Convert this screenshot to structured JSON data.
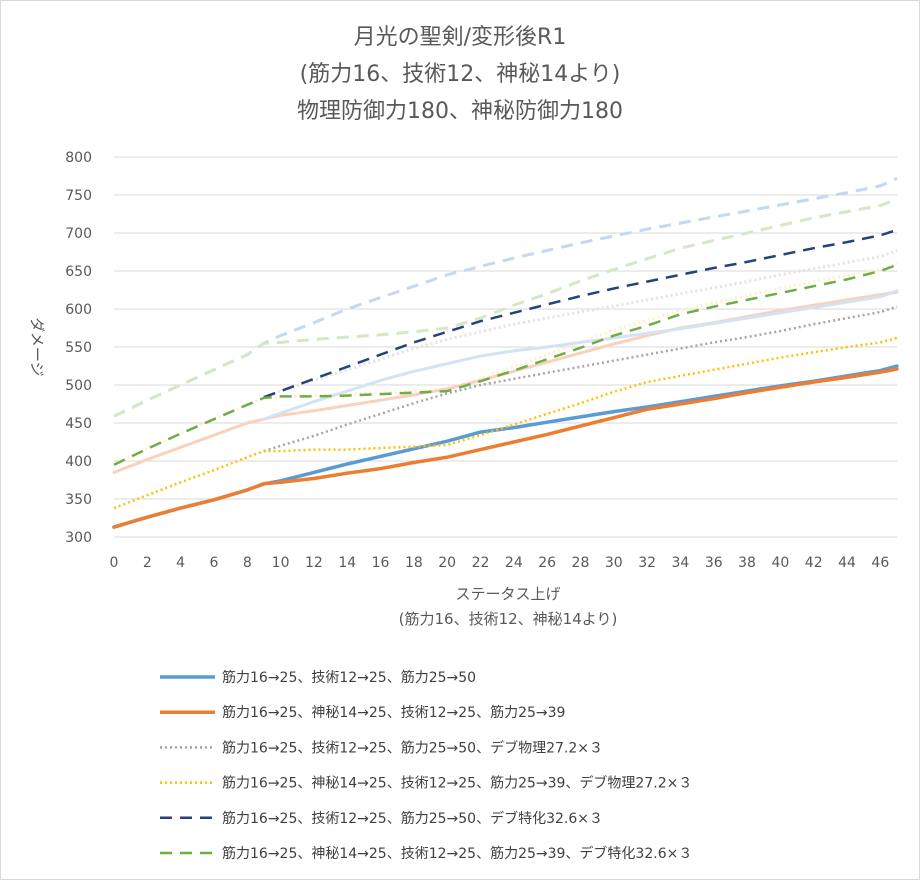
{
  "chart_data": {
    "type": "line",
    "title_lines": [
      "月光の聖剣/変形後R1",
      "(筋力16、技術12、神秘14より)",
      "物理防御力180、神秘防御力180"
    ],
    "xlabel_lines": [
      "ステータス上げ",
      "(筋力16、技術12、神秘14より)"
    ],
    "ylabel": "ダメージ",
    "xlim": [
      0,
      47
    ],
    "ylim": [
      300,
      800
    ],
    "yticks": [
      300,
      350,
      400,
      450,
      500,
      550,
      600,
      650,
      700,
      750,
      800
    ],
    "xticks": [
      0,
      2,
      4,
      6,
      8,
      10,
      12,
      14,
      16,
      18,
      20,
      22,
      24,
      26,
      28,
      30,
      32,
      34,
      36,
      38,
      40,
      42,
      44,
      46
    ],
    "grid": "horizontal",
    "legend_position": "bottom",
    "series": [
      {
        "name": "筋力16→25、技術12→25、筋力25→50",
        "color": "#5b9bd5",
        "style": "solid",
        "x": [
          0,
          2,
          4,
          6,
          8,
          9,
          10,
          12,
          14,
          16,
          18,
          20,
          22,
          24,
          26,
          28,
          30,
          32,
          34,
          36,
          38,
          40,
          42,
          44,
          46,
          47
        ],
        "y": [
          313,
          326,
          338,
          349,
          362,
          370,
          374,
          385,
          396,
          406,
          416,
          426,
          438,
          444,
          451,
          458,
          465,
          471,
          478,
          485,
          492,
          499,
          505,
          512,
          519,
          525
        ]
      },
      {
        "name": "筋力16→25、神秘14→25、技術12→25、筋力25→39",
        "color": "#ed7d31",
        "style": "solid",
        "x": [
          0,
          2,
          4,
          6,
          8,
          9,
          10,
          12,
          14,
          16,
          18,
          20,
          22,
          24,
          26,
          28,
          30,
          32,
          34,
          36,
          38,
          40,
          42,
          44,
          46,
          47
        ],
        "y": [
          313,
          326,
          338,
          349,
          362,
          370,
          372,
          377,
          384,
          390,
          398,
          405,
          415,
          425,
          435,
          446,
          457,
          468,
          475,
          482,
          490,
          497,
          504,
          510,
          517,
          521
        ]
      },
      {
        "name": "筋力16→25、技術12→25、筋力25→50、デブ物理27.2×３",
        "color": "#a5a5a5",
        "style": "dotted",
        "x": [
          9,
          10,
          12,
          14,
          16,
          18,
          20,
          22,
          24,
          26,
          28,
          30,
          32,
          34,
          36,
          38,
          40,
          42,
          44,
          46,
          47
        ],
        "y": [
          413,
          420,
          433,
          448,
          462,
          476,
          489,
          500,
          508,
          516,
          524,
          532,
          540,
          548,
          556,
          563,
          571,
          580,
          588,
          596,
          603
        ]
      },
      {
        "name": "筋力16→25、神秘14→25、技術12→25、筋力25→39、デブ物理27.2×３",
        "color": "#ffc000",
        "style": "dotted",
        "x": [
          0,
          2,
          4,
          6,
          8,
          9,
          10,
          12,
          14,
          16,
          18,
          20,
          22,
          24,
          26,
          28,
          30,
          32,
          34,
          36,
          38,
          40,
          42,
          44,
          46,
          47
        ],
        "y": [
          338,
          355,
          372,
          388,
          405,
          413,
          413,
          415,
          415,
          417,
          419,
          421,
          434,
          448,
          462,
          476,
          491,
          504,
          512,
          520,
          528,
          536,
          543,
          550,
          556,
          562
        ]
      },
      {
        "name": "筋力16→25、技術12→25、筋力25→50、デブ特化32.6×３",
        "color": "#264478",
        "style": "dashed",
        "x": [
          9,
          10,
          12,
          14,
          16,
          18,
          20,
          22,
          24,
          26,
          28,
          30,
          32,
          34,
          36,
          38,
          40,
          42,
          44,
          46,
          47
        ],
        "y": [
          484,
          492,
          508,
          524,
          540,
          556,
          570,
          584,
          595,
          606,
          617,
          627,
          636,
          645,
          654,
          662,
          671,
          680,
          688,
          697,
          704
        ]
      },
      {
        "name": "筋力16→25、神秘14→25、技術12→25、筋力25→39、デブ特化32.6×３",
        "color": "#70ad47",
        "style": "dashed",
        "x": [
          0,
          2,
          4,
          6,
          8,
          9,
          10,
          12,
          14,
          16,
          18,
          20,
          22,
          24,
          26,
          28,
          30,
          32,
          34,
          36,
          38,
          40,
          42,
          44,
          46,
          47
        ],
        "y": [
          395,
          416,
          436,
          455,
          474,
          483,
          485,
          485,
          486,
          488,
          490,
          492,
          505,
          519,
          534,
          549,
          565,
          578,
          593,
          603,
          612,
          621,
          630,
          639,
          650,
          658
        ]
      }
    ],
    "background_series": [
      {
        "color": "#c6d8ee",
        "style": "dashed",
        "x": [
          0,
          2,
          4,
          6,
          8,
          9,
          10,
          12,
          14,
          16,
          18,
          20,
          22,
          24,
          26,
          28,
          30,
          32,
          34,
          36,
          38,
          40,
          42,
          44,
          46,
          47
        ],
        "y": [
          459,
          480,
          500,
          520,
          540,
          555,
          565,
          582,
          600,
          615,
          630,
          645,
          656,
          667,
          677,
          687,
          696,
          705,
          713,
          721,
          729,
          737,
          745,
          753,
          762,
          772
        ]
      },
      {
        "color": "#d4e7c6",
        "style": "dashed",
        "x": [
          0,
          2,
          4,
          6,
          8,
          9,
          10,
          12,
          14,
          16,
          18,
          20,
          22,
          24,
          26,
          28,
          30,
          32,
          34,
          36,
          38,
          40,
          42,
          44,
          46,
          47
        ],
        "y": [
          459,
          480,
          500,
          520,
          540,
          555,
          556,
          560,
          563,
          566,
          570,
          575,
          588,
          605,
          620,
          637,
          652,
          666,
          680,
          690,
          700,
          710,
          720,
          728,
          736,
          745
        ]
      },
      {
        "color": "#e3e3e3",
        "style": "dotted",
        "x": [
          9,
          10,
          12,
          14,
          16,
          18,
          20,
          22,
          24,
          26,
          28,
          30,
          32,
          34,
          36,
          38,
          40,
          42,
          44,
          46,
          47
        ],
        "y": [
          484,
          492,
          506,
          520,
          534,
          548,
          560,
          570,
          580,
          588,
          596,
          604,
          612,
          620,
          628,
          636,
          645,
          653,
          661,
          669,
          677
        ]
      },
      {
        "color": "#fff0c8",
        "style": "dotted",
        "x": [
          0,
          2,
          4,
          6,
          8,
          9,
          10,
          12,
          14,
          16,
          18,
          20,
          22,
          24,
          26,
          28,
          30,
          32,
          34,
          36,
          38,
          40,
          42,
          44,
          46,
          47
        ],
        "y": [
          395,
          416,
          436,
          455,
          474,
          483,
          484,
          486,
          488,
          490,
          492,
          494,
          508,
          524,
          540,
          556,
          572,
          585,
          598,
          608,
          618,
          627,
          636,
          644,
          652,
          660
        ]
      },
      {
        "color": "#f8d2bb",
        "style": "solid",
        "x": [
          0,
          2,
          4,
          6,
          8,
          9,
          10,
          12,
          14,
          16,
          18,
          20,
          22,
          24,
          26,
          28,
          30,
          32,
          34,
          36,
          38,
          40,
          42,
          44,
          46,
          47
        ],
        "y": [
          385,
          402,
          418,
          434,
          450,
          455,
          460,
          466,
          473,
          480,
          487,
          495,
          506,
          518,
          530,
          542,
          554,
          565,
          575,
          582,
          590,
          598,
          605,
          612,
          619,
          622
        ]
      },
      {
        "color": "#d4e3f3",
        "style": "solid",
        "x": [
          9,
          10,
          12,
          14,
          16,
          18,
          20,
          22,
          24,
          26,
          28,
          30,
          32,
          34,
          36,
          38,
          40,
          42,
          44,
          46,
          47
        ],
        "y": [
          455,
          463,
          478,
          492,
          506,
          518,
          528,
          538,
          545,
          550,
          556,
          562,
          568,
          574,
          581,
          588,
          595,
          602,
          609,
          616,
          624
        ]
      }
    ]
  }
}
